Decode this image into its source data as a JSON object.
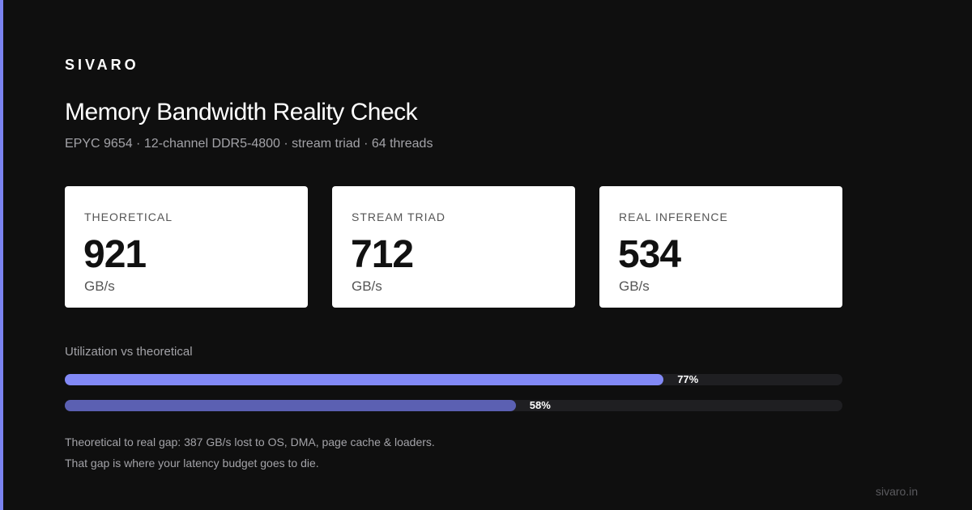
{
  "brand": "SIVARO",
  "title": "Memory Bandwidth Reality Check",
  "subtitle": "EPYC 9654 · 12-channel DDR5-4800 · stream triad · 64 threads",
  "cards": [
    {
      "label": "THEORETICAL",
      "value": 921,
      "unit": "GB/s"
    },
    {
      "label": "STREAM TRIAD",
      "value": 712,
      "unit": "GB/s"
    },
    {
      "label": "REAL INFERENCE",
      "value": 534,
      "unit": "GB/s"
    }
  ],
  "utilization": {
    "title": "Utilization vs theoretical",
    "bars": [
      {
        "value": 77,
        "value_label": "77%",
        "color": "#8289f6"
      },
      {
        "value": 58,
        "value_label": "58%",
        "color": "#5b60b2"
      }
    ]
  },
  "notes": [
    "Theoretical to real gap: 387 GB/s lost to OS, DMA, page cache & loaders.",
    "That gap is where your latency budget goes to die."
  ],
  "footer": "sivaro.in"
}
